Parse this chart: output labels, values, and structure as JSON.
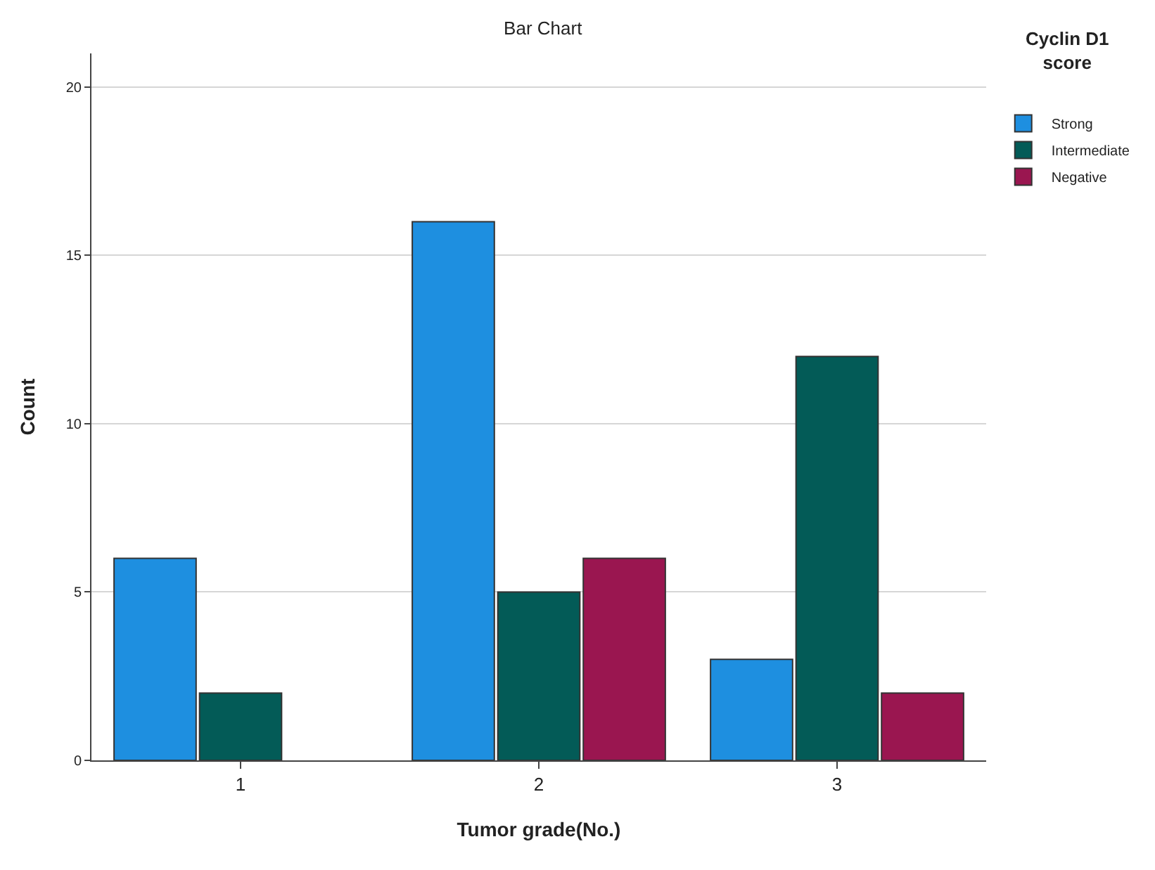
{
  "chart_data": {
    "type": "bar",
    "title": "Bar Chart",
    "xlabel": "Tumor grade(No.)",
    "ylabel": "Count",
    "legend_title": "Cyclin D1 score",
    "categories": [
      "1",
      "2",
      "3"
    ],
    "series": [
      {
        "name": "Strong",
        "color": "#1e8fe0",
        "values": [
          6,
          16,
          3
        ]
      },
      {
        "name": "Intermediate",
        "color": "#035b57",
        "values": [
          2,
          5,
          12
        ]
      },
      {
        "name": "Negative",
        "color": "#9a1650",
        "values": [
          null,
          6,
          2
        ]
      }
    ],
    "ylim": [
      0,
      21
    ],
    "yticks": [
      0,
      5,
      10,
      15,
      20
    ],
    "grid": "y",
    "legend": "top right"
  }
}
